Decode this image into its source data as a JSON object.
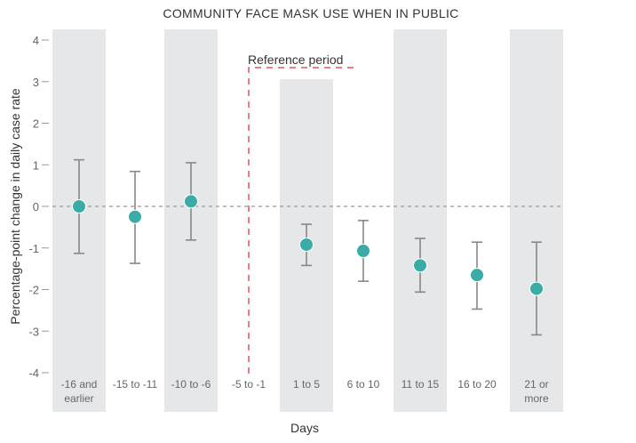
{
  "chart_data": {
    "type": "scatter",
    "title": "COMMUNITY FACE MASK USE WHEN IN PUBLIC",
    "xlabel": "Days",
    "ylabel": "Percentage-point change in daily case rate",
    "ylim": [
      -4,
      4
    ],
    "yticks": [
      "4",
      "3",
      "2",
      "1",
      "0",
      "-1",
      "-2",
      "-3",
      "-4"
    ],
    "categories": [
      [
        "-16 and",
        "earlier"
      ],
      [
        "-15 to -11"
      ],
      [
        "-10 to -6"
      ],
      [
        "-5 to -1"
      ],
      [
        "1 to 5"
      ],
      [
        "6 to 10"
      ],
      [
        "11 to 15"
      ],
      [
        "16 to 20"
      ],
      [
        "21 or",
        "more"
      ]
    ],
    "series": [
      {
        "values": [
          0,
          -0.25,
          0.12,
          null,
          -0.92,
          -1.07,
          -1.42,
          -1.65,
          -1.98
        ],
        "ci_low": [
          -1.13,
          -1.37,
          -0.81,
          null,
          -1.42,
          -1.8,
          -2.06,
          -2.47,
          -3.09
        ],
        "ci_high": [
          1.12,
          0.84,
          1.05,
          null,
          -0.43,
          -0.34,
          -0.77,
          -0.86,
          -0.86
        ]
      }
    ],
    "reference": {
      "label": "Reference period",
      "category": "-5 to -1"
    },
    "zero_line": true,
    "colors": {
      "point": "#3aaba5",
      "errorbar": "#888888",
      "band": "#e6e7e8",
      "reference": "#e8505b"
    }
  }
}
